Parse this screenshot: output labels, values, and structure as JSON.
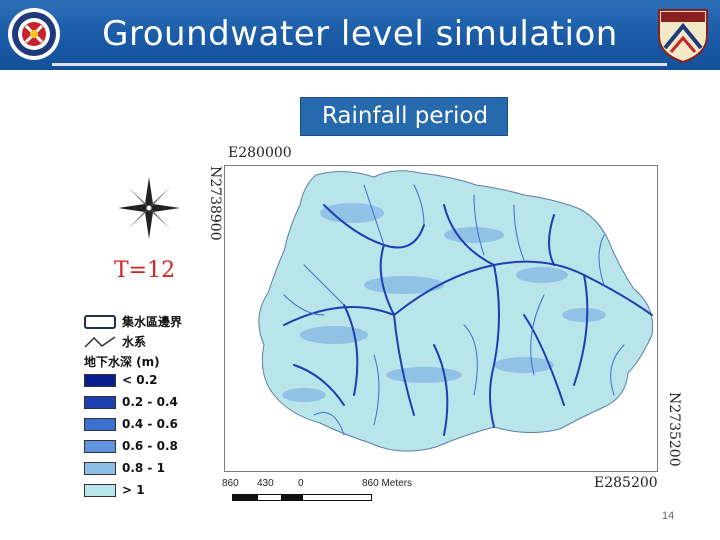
{
  "header": {
    "title": "Groundwater level simulation",
    "colors": {
      "banner": "#1a5aa6",
      "text": "#ffffff"
    }
  },
  "subtitle": {
    "label": "Rainfall period",
    "color": "#2769ad"
  },
  "map": {
    "coords": {
      "top_easting": "E280000",
      "top_northing": "N2738900",
      "bottom_northing": "N2735200",
      "bottom_easting": "E285200"
    },
    "time_label": "T=12",
    "legend": {
      "boundary": "集水區邊界",
      "river": "水系",
      "title": "地下水深 (m)",
      "classes": [
        {
          "label": "< 0.2",
          "color": "#0a1f8f"
        },
        {
          "label": "0.2 - 0.4",
          "color": "#1e3fb0"
        },
        {
          "label": "0.4 - 0.6",
          "color": "#3b6fd0"
        },
        {
          "label": "0.6 - 0.8",
          "color": "#5f93dc"
        },
        {
          "label": "0.8 - 1",
          "color": "#8bbde6"
        },
        {
          "label": "> 1",
          "color": "#b9e4ea"
        }
      ]
    },
    "scale": {
      "labels": [
        "860",
        "430",
        "0",
        "860 Meters"
      ]
    },
    "compass_icon": "north-arrow-compass-icon"
  },
  "page": {
    "number": "14"
  }
}
